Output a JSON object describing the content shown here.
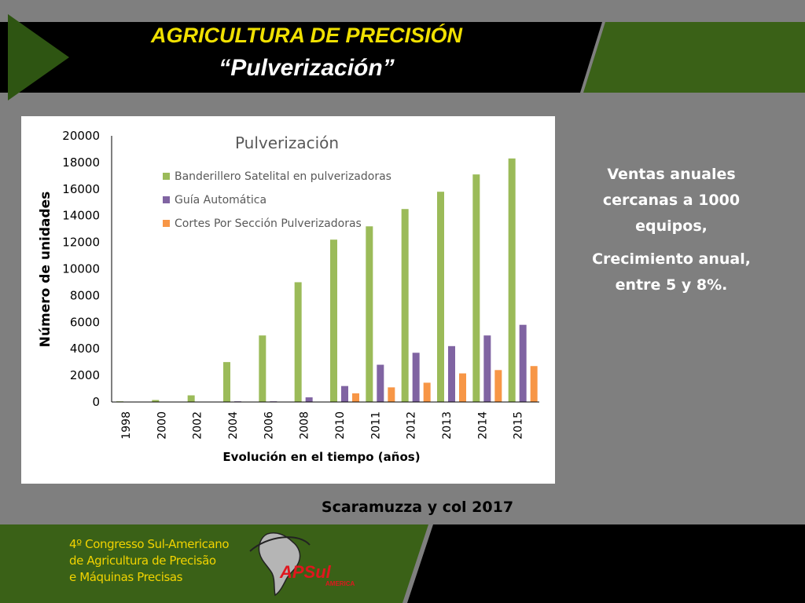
{
  "slide": {
    "title_line1": "AGRICULTURA DE PRECISIÓN",
    "title_line2": "“Pulverización”",
    "side_note_1": "Ventas anuales cercanas a 1000 equipos,",
    "side_note_2": "Crecimiento anual, entre 5  y 8%.",
    "citation": "Scaramuzza y col 2017"
  },
  "footer": {
    "congress_line1": "4º Congresso Sul-Americano",
    "congress_line2": "de Agricultura de Precisão",
    "congress_line3": "e Máquinas Precisas",
    "logo_text": "APSul",
    "logo_subtext": "AMERICA"
  },
  "colors": {
    "banner_black": "#000000",
    "banner_green": "#3a6117",
    "title_yellow": "#f0e000",
    "footer_yellow": "#f1d300",
    "logo_red": "#e0161e"
  },
  "chart_data": {
    "type": "bar",
    "title": "Pulverización",
    "xlabel": "Evolución en el tiempo (años)",
    "ylabel": "Número de unidades",
    "categories": [
      "1998",
      "2000",
      "2002",
      "2004",
      "2006",
      "2008",
      "2010",
      "2011",
      "2012",
      "2013",
      "2014",
      "2015"
    ],
    "ylim": [
      0,
      20000
    ],
    "yticks": [
      "0",
      "2000",
      "4000",
      "6000",
      "8000",
      "10000",
      "12000",
      "14000",
      "16000",
      "18000",
      "20000"
    ],
    "grid": false,
    "legend_position": "top-left",
    "series": [
      {
        "name": "Banderillero Satelital en pulverizadoras",
        "color": "#9bbb59",
        "values": [
          50,
          150,
          500,
          3000,
          5000,
          9000,
          12200,
          13200,
          14500,
          15800,
          17100,
          18300
        ]
      },
      {
        "name": "Guía Automática",
        "color": "#8064a2",
        "values": [
          0,
          0,
          0,
          50,
          50,
          350,
          1200,
          2800,
          3700,
          4200,
          5000,
          5800
        ]
      },
      {
        "name": "Cortes Por Sección Pulverizadoras",
        "color": "#f79646",
        "values": [
          0,
          0,
          0,
          0,
          0,
          0,
          650,
          1100,
          1450,
          2150,
          2400,
          2700
        ]
      }
    ]
  }
}
